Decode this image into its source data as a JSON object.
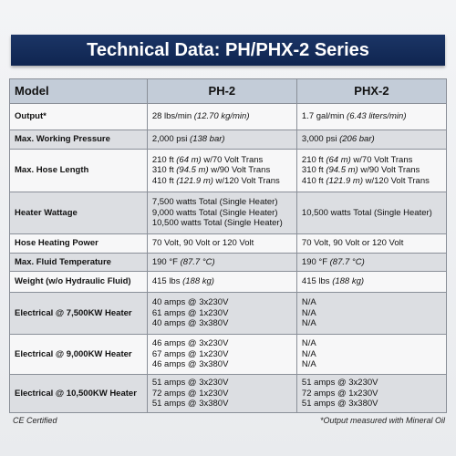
{
  "header": {
    "title": "Technical Data: PH/PHX-2 Series"
  },
  "table": {
    "columns": [
      "Model",
      "PH-2",
      "PHX-2"
    ],
    "rows": [
      {
        "label": "Output*",
        "cells": [
          [
            [
              "28 lbs/min ",
              "(12.70 kg/min)"
            ]
          ],
          [
            [
              "1.7 gal/min ",
              "(6.43 liters/min)"
            ]
          ]
        ]
      },
      {
        "label": "Max. Working Pressure",
        "cells": [
          [
            [
              "2,000 psi ",
              "(138 bar)"
            ]
          ],
          [
            [
              "3,000 psi ",
              "(206 bar)"
            ]
          ]
        ]
      },
      {
        "label": "Max. Hose Length",
        "cells": [
          [
            [
              "210 ft ",
              "(64 m)",
              " w/70 Volt Trans"
            ],
            [
              "310 ft ",
              "(94.5 m)",
              " w/90 Volt Trans"
            ],
            [
              "410 ft ",
              "(121.9 m)",
              " w/120 Volt Trans"
            ]
          ],
          [
            [
              "210 ft ",
              "(64 m)",
              " w/70 Volt Trans"
            ],
            [
              "310 ft ",
              "(94.5 m)",
              " w/90 Volt Trans"
            ],
            [
              "410 ft ",
              "(121.9 m)",
              " w/120 Volt Trans"
            ]
          ]
        ]
      },
      {
        "label": "Heater Wattage",
        "cells": [
          [
            [
              "7,500 watts Total (Single Heater)"
            ],
            [
              "9,000 watts Total (Single Heater)"
            ],
            [
              "10,500 watts Total (Single Heater)"
            ]
          ],
          [
            [
              "10,500 watts Total (Single Heater)"
            ]
          ]
        ]
      },
      {
        "label": "Hose Heating Power",
        "cells": [
          [
            [
              "70 Volt, 90 Volt or 120 Volt"
            ]
          ],
          [
            [
              "70 Volt, 90 Volt or 120 Volt"
            ]
          ]
        ]
      },
      {
        "label": "Max. Fluid Temperature",
        "cells": [
          [
            [
              "190 °F ",
              "(87.7 °C)"
            ]
          ],
          [
            [
              "190 °F ",
              "(87.7 °C)"
            ]
          ]
        ]
      },
      {
        "label": "Weight (w/o Hydraulic Fluid)",
        "cells": [
          [
            [
              "415 lbs ",
              "(188 kg)"
            ]
          ],
          [
            [
              "415 lbs ",
              "(188 kg)"
            ]
          ]
        ]
      },
      {
        "label": "Electrical @ 7,500KW Heater",
        "cells": [
          [
            [
              "40 amps @ 3x230V"
            ],
            [
              "61 amps @ 1x230V"
            ],
            [
              "40 amps @ 3x380V"
            ]
          ],
          [
            [
              "N/A"
            ],
            [
              "N/A"
            ],
            [
              "N/A"
            ]
          ]
        ]
      },
      {
        "label": "Electrical @ 9,000KW Heater",
        "cells": [
          [
            [
              "46 amps @ 3x230V"
            ],
            [
              "67 amps @ 1x230V"
            ],
            [
              "46 amps @ 3x380V"
            ]
          ],
          [
            [
              "N/A"
            ],
            [
              "N/A"
            ],
            [
              "N/A"
            ]
          ]
        ]
      },
      {
        "label": "Electrical @ 10,500KW Heater",
        "cells": [
          [
            [
              "51 amps @ 3x230V"
            ],
            [
              "72 amps @ 1x230V"
            ],
            [
              "51 amps @ 3x380V"
            ]
          ],
          [
            [
              "51 amps @ 3x230V"
            ],
            [
              "72 amps @ 1x230V"
            ],
            [
              "51 amps @ 3x380V"
            ]
          ]
        ]
      }
    ]
  },
  "footer": {
    "left": "CE Certified",
    "right": "*Output measured with Mineral Oil"
  }
}
